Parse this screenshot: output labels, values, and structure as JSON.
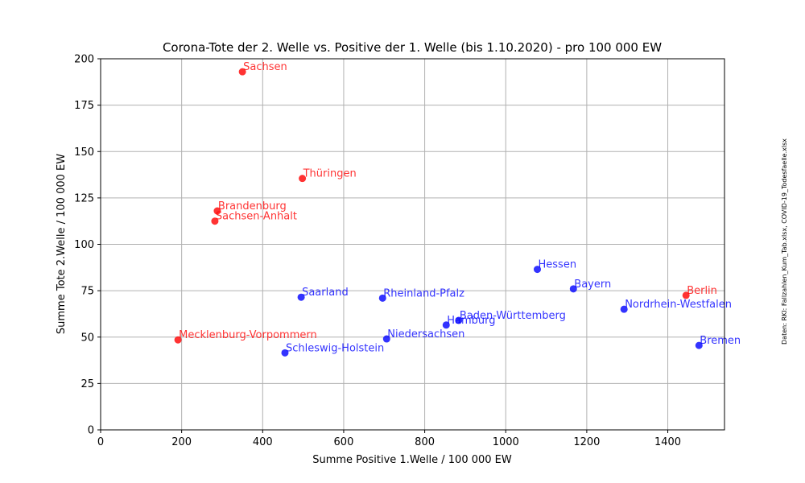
{
  "chart_data": {
    "type": "scatter",
    "title": "Corona-Tote der 2. Welle vs. Positive der 1. Welle (bis 1.10.2020) - pro 100 000 EW",
    "xlabel": "Summe Positive 1.Welle / 100 000  EW",
    "ylabel": "Summe Tote 2.Welle / 100 000 EW",
    "xlim": [
      0,
      1540
    ],
    "ylim": [
      0,
      200
    ],
    "xticks": [
      0,
      200,
      400,
      600,
      800,
      1000,
      1200,
      1400
    ],
    "yticks": [
      0,
      25,
      50,
      75,
      100,
      125,
      150,
      175,
      200
    ],
    "grid": true,
    "source_note": "Daten: RKI: Fallzahlen_Kum_Tab.xlsx, COVID-19_Todesfaelle.xlsx",
    "colors": {
      "red": "#ff0000",
      "blue": "#0000ff"
    },
    "points": [
      {
        "label": "Sachsen",
        "x": 350,
        "y": 193,
        "color": "red"
      },
      {
        "label": "Thüringen",
        "x": 498,
        "y": 135.5,
        "color": "red"
      },
      {
        "label": "Brandenburg",
        "x": 288,
        "y": 118,
        "color": "red"
      },
      {
        "label": "Sachsen-Anhalt",
        "x": 282,
        "y": 112.5,
        "color": "red"
      },
      {
        "label": "Mecklenburg-Vorpommern",
        "x": 191,
        "y": 48.5,
        "color": "red"
      },
      {
        "label": "Berlin",
        "x": 1445,
        "y": 72.5,
        "color": "red"
      },
      {
        "label": "Hessen",
        "x": 1078,
        "y": 86.5,
        "color": "blue"
      },
      {
        "label": "Bayern",
        "x": 1167,
        "y": 76,
        "color": "blue"
      },
      {
        "label": "Nordrhein-Westfalen",
        "x": 1292,
        "y": 65,
        "color": "blue"
      },
      {
        "label": "Saarland",
        "x": 495,
        "y": 71.5,
        "color": "blue"
      },
      {
        "label": "Rheinland-Pfalz",
        "x": 696,
        "y": 71,
        "color": "blue"
      },
      {
        "label": "Baden-Württemberg",
        "x": 884,
        "y": 59,
        "color": "blue"
      },
      {
        "label": "Hamburg",
        "x": 853,
        "y": 56.5,
        "color": "blue"
      },
      {
        "label": "Niedersachsen",
        "x": 706,
        "y": 49,
        "color": "blue"
      },
      {
        "label": "Schleswig-Holstein",
        "x": 455,
        "y": 41.5,
        "color": "blue"
      },
      {
        "label": "Bremen",
        "x": 1477,
        "y": 45.5,
        "color": "blue"
      }
    ]
  }
}
